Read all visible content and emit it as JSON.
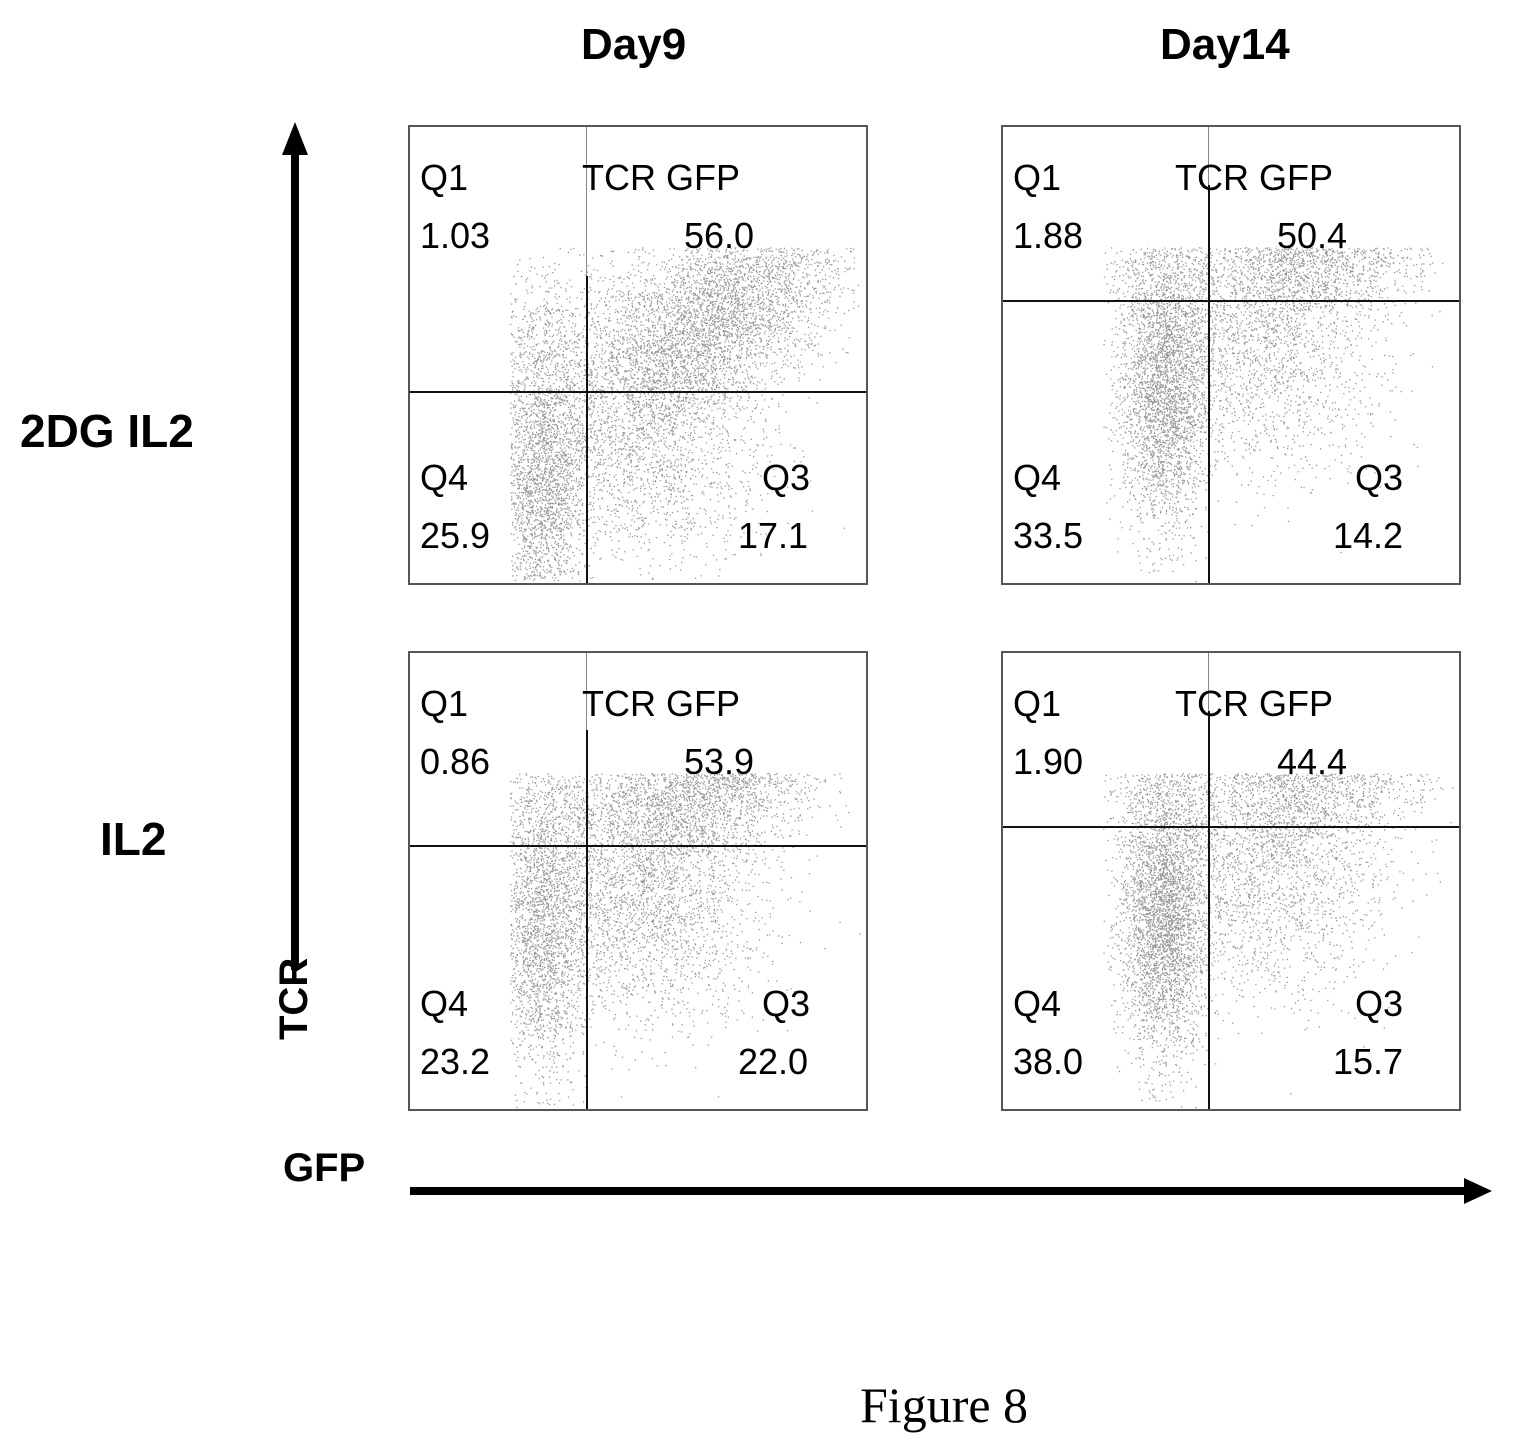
{
  "chart_data": {
    "type": "scatter",
    "column_titles": [
      "Day9",
      "Day14"
    ],
    "row_labels": [
      "2DG IL2",
      "IL2"
    ],
    "xlabel": "GFP",
    "ylabel": "TCR",
    "caption": "Figure 8",
    "panels": [
      {
        "row": 0,
        "col": 0,
        "condition": "2DG IL2",
        "day": "Day9",
        "quadrants": {
          "Q1": {
            "label": "Q1",
            "value": "1.03"
          },
          "Q2": {
            "label": "TCR GFP",
            "value": "56.0"
          },
          "Q3": {
            "label": "Q3",
            "value": "17.1"
          },
          "Q4": {
            "label": "Q4",
            "value": "25.9"
          }
        },
        "gate": {
          "x": 0.385,
          "y": 0.58
        }
      },
      {
        "row": 0,
        "col": 1,
        "condition": "2DG IL2",
        "day": "Day14",
        "quadrants": {
          "Q1": {
            "label": "Q1",
            "value": "1.88"
          },
          "Q2": {
            "label": "TCR GFP",
            "value": "50.4"
          },
          "Q3": {
            "label": "Q3",
            "value": "14.2"
          },
          "Q4": {
            "label": "Q4",
            "value": "33.5"
          }
        },
        "gate": {
          "x": 0.45,
          "y": 0.38
        }
      },
      {
        "row": 1,
        "col": 0,
        "condition": "IL2",
        "day": "Day9",
        "quadrants": {
          "Q1": {
            "label": "Q1",
            "value": "0.86"
          },
          "Q2": {
            "label": "TCR GFP",
            "value": "53.9"
          },
          "Q3": {
            "label": "Q3",
            "value": "22.0"
          },
          "Q4": {
            "label": "Q4",
            "value": "23.2"
          }
        },
        "gate": {
          "x": 0.385,
          "y": 0.42
        }
      },
      {
        "row": 1,
        "col": 1,
        "condition": "IL2",
        "day": "Day14",
        "quadrants": {
          "Q1": {
            "label": "Q1",
            "value": "1.90"
          },
          "Q2": {
            "label": "TCR GFP",
            "value": "44.4"
          },
          "Q3": {
            "label": "Q3",
            "value": "15.7"
          },
          "Q4": {
            "label": "Q4",
            "value": "38.0"
          }
        },
        "gate": {
          "x": 0.45,
          "y": 0.38
        }
      }
    ]
  }
}
